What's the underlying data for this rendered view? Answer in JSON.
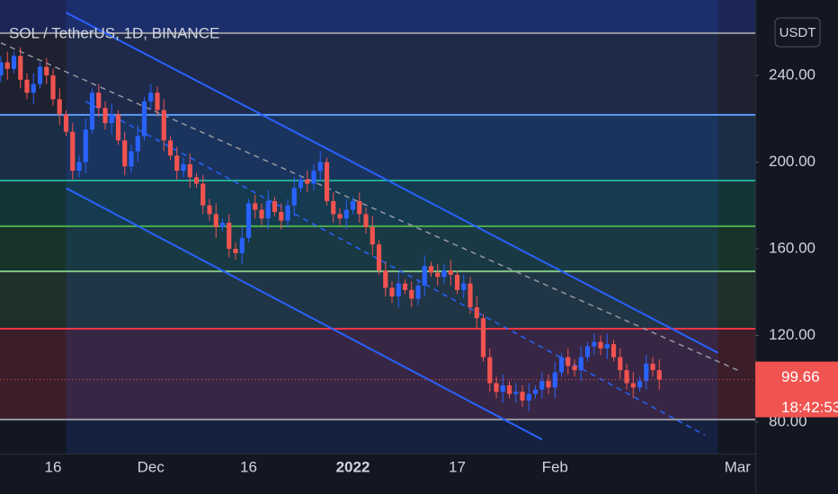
{
  "chart_data": {
    "type": "candlestick",
    "title": "SOL / TetherUS, 1D, BINANCE",
    "currency": "USDT",
    "countdown": "18:42:53",
    "categories": [
      null,
      null,
      null,
      null,
      null,
      null,
      null,
      null,
      "16",
      null,
      null,
      null,
      null,
      null,
      null,
      null,
      null,
      null,
      null,
      null,
      null,
      null,
      null,
      "Dec",
      null,
      null,
      null,
      null,
      null,
      null,
      null,
      null,
      null,
      null,
      null,
      null,
      null,
      null,
      "16",
      null,
      null,
      null,
      null,
      null,
      null,
      null,
      null,
      null,
      null,
      null,
      null,
      null,
      null,
      null,
      "2022",
      null,
      null,
      null,
      null,
      null,
      null,
      null,
      null,
      null,
      null,
      null,
      null,
      null,
      null,
      null,
      "17",
      null,
      null,
      null,
      null,
      null,
      null,
      null,
      null,
      null,
      null,
      null,
      null,
      null,
      null,
      "Feb",
      null,
      null,
      null,
      null,
      null,
      null,
      null,
      null,
      null,
      null,
      null,
      null,
      null,
      null,
      null,
      null,
      null,
      null,
      null,
      null,
      null,
      null,
      null,
      null,
      null,
      null,
      null,
      "Mar"
    ],
    "open": [
      240,
      246,
      243,
      249,
      238,
      232,
      236,
      244,
      240,
      229,
      222,
      214,
      196,
      200,
      215,
      232,
      225,
      218,
      222,
      210,
      198,
      205,
      212,
      228,
      232,
      224,
      210,
      203,
      196,
      199,
      193,
      190,
      180,
      176,
      170,
      172,
      160,
      158,
      165,
      181,
      178,
      174,
      182,
      177,
      173,
      180,
      188,
      192,
      190,
      196,
      200,
      182,
      176,
      174,
      178,
      182,
      176,
      170,
      162,
      150,
      142,
      138,
      144,
      141,
      137,
      143,
      152,
      149,
      147,
      150,
      148,
      141,
      144,
      133,
      128,
      110,
      98,
      94,
      97,
      93,
      94,
      90,
      93,
      95,
      99,
      96,
      103,
      110,
      106,
      104,
      110,
      115,
      117,
      114,
      116,
      110,
      104,
      98,
      96,
      99,
      107,
      104,
      null,
      null,
      null,
      null,
      null,
      null,
      null,
      null,
      null,
      null,
      null,
      null
    ],
    "high": [
      249,
      251,
      251,
      253,
      241,
      241,
      246,
      248,
      243,
      234,
      224,
      218,
      203,
      220,
      234,
      236,
      228,
      227,
      224,
      214,
      208,
      217,
      230,
      236,
      235,
      229,
      212,
      207,
      202,
      204,
      195,
      194,
      183,
      181,
      174,
      176,
      163,
      170,
      183,
      185,
      181,
      187,
      184,
      181,
      183,
      193,
      194,
      196,
      199,
      205,
      202,
      186,
      179,
      183,
      184,
      186,
      179,
      175,
      164,
      154,
      145,
      149,
      146,
      145,
      146,
      157,
      154,
      153,
      153,
      155,
      150,
      148,
      147,
      138,
      130,
      114,
      101,
      102,
      99,
      98,
      97,
      98,
      97,
      103,
      102,
      108,
      112,
      114,
      109,
      115,
      117,
      121,
      120,
      121,
      118,
      114,
      107,
      103,
      101,
      111,
      110,
      109,
      null,
      null,
      null,
      null,
      null,
      null,
      null,
      null,
      null,
      null,
      null,
      null
    ],
    "low": [
      237,
      238,
      241,
      234,
      229,
      227,
      234,
      236,
      226,
      217,
      212,
      192,
      193,
      195,
      213,
      221,
      215,
      213,
      208,
      194,
      195,
      200,
      210,
      224,
      221,
      205,
      201,
      192,
      193,
      188,
      188,
      176,
      173,
      165,
      168,
      156,
      155,
      153,
      163,
      174,
      171,
      169,
      175,
      169,
      170,
      175,
      186,
      186,
      187,
      191,
      180,
      172,
      171,
      169,
      176,
      172,
      167,
      157,
      148,
      138,
      135,
      133,
      139,
      133,
      134,
      138,
      147,
      143,
      144,
      143,
      139,
      137,
      130,
      123,
      108,
      94,
      91,
      89,
      91,
      89,
      87,
      85,
      91,
      91,
      93,
      91,
      101,
      102,
      101,
      99,
      108,
      111,
      111,
      109,
      108,
      100,
      95,
      91,
      94,
      95,
      101,
      95,
      null,
      null,
      null,
      null,
      null,
      null,
      null,
      null,
      null,
      null,
      null,
      null
    ],
    "close": [
      246,
      243,
      249,
      238,
      232,
      236,
      244,
      240,
      229,
      222,
      214,
      196,
      200,
      215,
      232,
      225,
      218,
      222,
      210,
      198,
      205,
      212,
      228,
      232,
      224,
      210,
      203,
      196,
      199,
      193,
      190,
      180,
      176,
      170,
      172,
      160,
      158,
      165,
      181,
      178,
      174,
      182,
      177,
      173,
      180,
      188,
      192,
      190,
      196,
      200,
      182,
      176,
      174,
      178,
      182,
      176,
      170,
      162,
      150,
      142,
      138,
      144,
      141,
      137,
      143,
      152,
      149,
      147,
      150,
      148,
      141,
      144,
      133,
      128,
      110,
      98,
      94,
      97,
      93,
      94,
      90,
      93,
      95,
      99,
      96,
      103,
      110,
      106,
      104,
      110,
      115,
      117,
      114,
      116,
      110,
      104,
      98,
      96,
      99,
      107,
      104,
      99.66,
      null,
      null,
      null,
      null,
      null,
      null,
      null,
      null,
      null,
      null,
      null,
      null
    ],
    "up_color": "#2962ff",
    "down_color": "#f05350",
    "ylim": [
      65.5,
      274.8
    ],
    "yticks": [
      {
        "value": 80,
        "label": "80.00"
      },
      {
        "value": 120,
        "label": "120.00"
      },
      {
        "value": 160,
        "label": "160.00"
      },
      {
        "value": 200,
        "label": "200.00"
      },
      {
        "value": 240,
        "label": "240.00"
      }
    ],
    "levels": [
      {
        "value": 259.5,
        "color": "#9598a1",
        "fill": "#1e2230"
      },
      {
        "value": 221.8,
        "color": "#5b9cf6",
        "fill": "#1a2d45"
      },
      {
        "value": 191.5,
        "color": "#22ab94",
        "fill": "#143437"
      },
      {
        "value": 170.4,
        "color": "#4caf50",
        "fill": "#17332a"
      },
      {
        "value": 149.6,
        "color": "#81c784",
        "fill": "#1f2f2b"
      },
      {
        "value": 123.1,
        "color": "#f23645",
        "fill": "#3b1e29"
      },
      {
        "value": 81.2,
        "color": "#9598a1"
      }
    ],
    "lines": [
      {
        "x": [
          10,
          110
        ],
        "y": [
          269,
          112
        ],
        "color": "#2962ff",
        "style": "solid"
      },
      {
        "x": [
          10,
          83
        ],
        "y": [
          188,
          72
        ],
        "color": "#2962ff",
        "style": "solid"
      },
      {
        "x": [
          0,
          113
        ],
        "y": [
          255,
          104
        ],
        "color": "#9598a1",
        "style": "dashed"
      },
      {
        "x": [
          13,
          108
        ],
        "y": [
          228,
          74
        ],
        "color": "#2962ff",
        "style": "dashed"
      }
    ]
  }
}
